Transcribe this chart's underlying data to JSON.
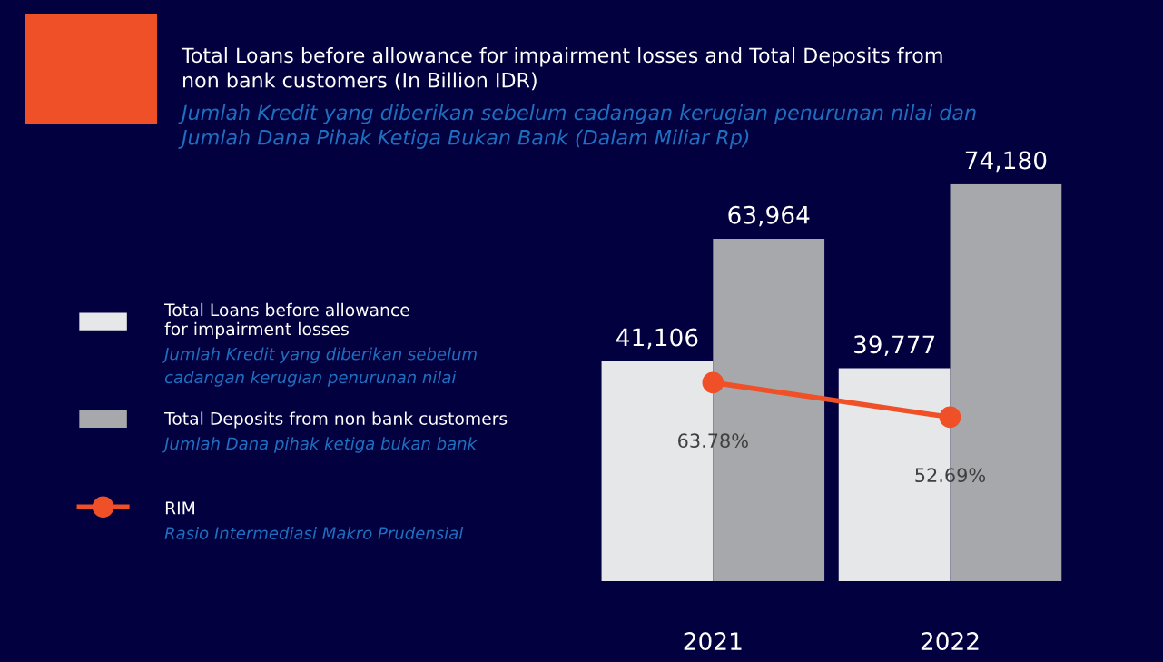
{
  "chart_data": {
    "type": "bar",
    "title": "Total Loans before allowance for impairment losses and Total Deposits from\nnon bank customers (In Billion IDR)",
    "subtitle": "Jumlah Kredit yang diberikan sebelum cadangan kerugian penurunan nilai dan\nJumlah Dana Pihak Ketiga Bukan Bank (Dalam Miliar Rp)",
    "categories": [
      "2021",
      "2022"
    ],
    "series": [
      {
        "name": "Total Loans before allowance\nfor impairment losses",
        "color": "#e6e7e9",
        "values": [
          41106,
          39777
        ],
        "value_labels": [
          "41,106",
          "39,777"
        ]
      },
      {
        "name": "Total Deposits from non bank customers",
        "color": "#a7a8ab",
        "values": [
          63964,
          74180
        ],
        "value_labels": [
          "63,964",
          "74,180"
        ]
      },
      {
        "name": "RIM",
        "type": "line",
        "axis": "y2",
        "color": "#f05028",
        "values": [
          63.78,
          52.69
        ],
        "value_labels": [
          "63.78%",
          "52.69%"
        ]
      }
    ],
    "annotations": [
      "Jumlah Kredit yang diberikan sebelum\ncadangan kerugian penurunan nilai",
      "Jumlah Dana pihak ketiga bukan bank",
      "Rasio Intermediasi Makro Prudensial"
    ],
    "legend": "left",
    "marker": "circle",
    "line_style": "solid",
    "grid": false
  }
}
